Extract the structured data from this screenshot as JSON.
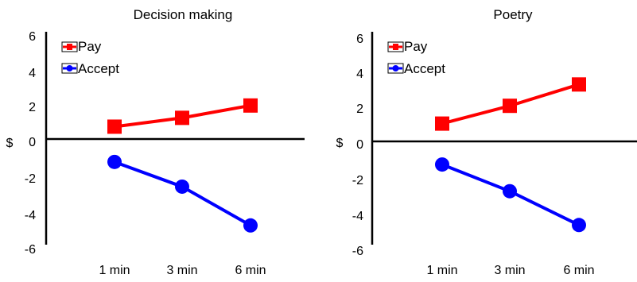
{
  "chart_data": [
    {
      "type": "line",
      "title": "Decision making",
      "ylabel": "$",
      "categories": [
        "1 min",
        "3 min",
        "6 min"
      ],
      "ylim": [
        -6,
        6
      ],
      "yticks": [
        "6",
        "4",
        "2",
        "0",
        "-2",
        "-4",
        "-6"
      ],
      "legend_position": "top-left",
      "series": [
        {
          "name": "Pay",
          "color": "#ff0000",
          "marker": "square",
          "values": [
            0.7,
            1.2,
            1.9
          ]
        },
        {
          "name": "Accept",
          "color": "#0000ff",
          "marker": "circle",
          "values": [
            -1.3,
            -2.7,
            -4.9
          ]
        }
      ]
    },
    {
      "type": "line",
      "title": "Poetry",
      "ylabel": "$",
      "categories": [
        "1 min",
        "3 min",
        "6 min"
      ],
      "ylim": [
        -6,
        6
      ],
      "yticks": [
        "6",
        "4",
        "2",
        "0",
        "-2",
        "-4",
        "-6"
      ],
      "legend_position": "top-left",
      "series": [
        {
          "name": "Pay",
          "color": "#ff0000",
          "marker": "square",
          "values": [
            1.0,
            2.0,
            3.2
          ]
        },
        {
          "name": "Accept",
          "color": "#0000ff",
          "marker": "circle",
          "values": [
            -1.3,
            -2.8,
            -4.7
          ]
        }
      ]
    }
  ]
}
